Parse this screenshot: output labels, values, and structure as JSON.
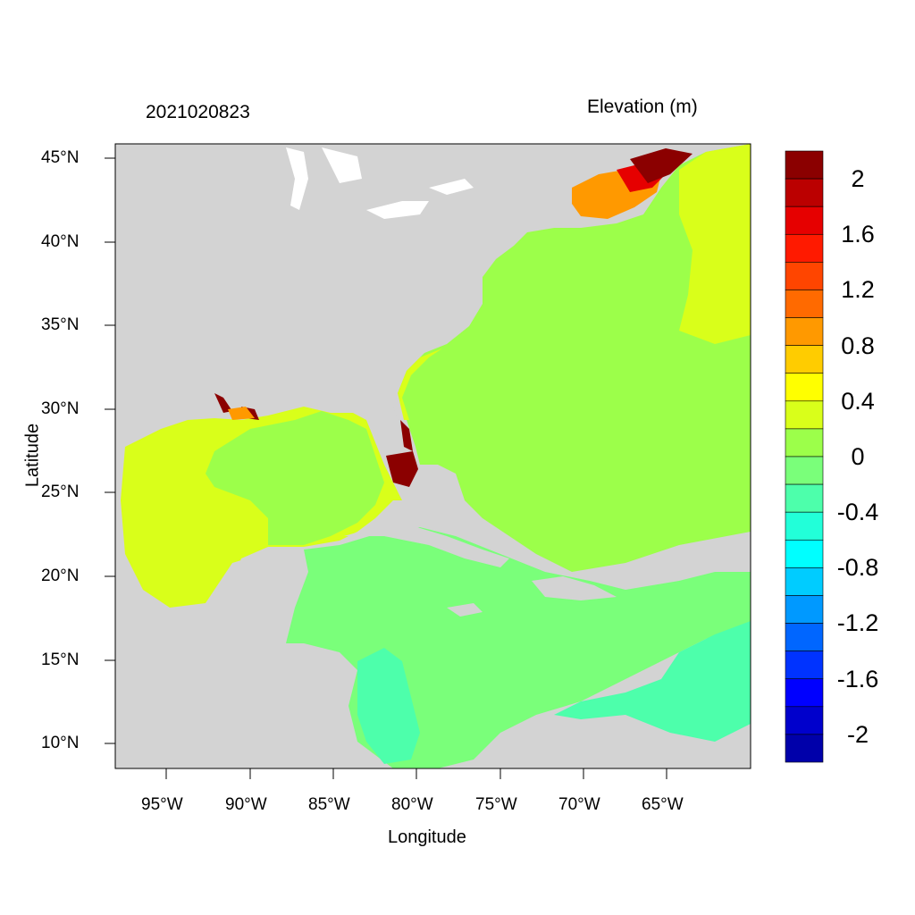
{
  "header": {
    "date_label": "2021020823",
    "variable_label": "Elevation (m)"
  },
  "axes": {
    "xlabel": "Longitude",
    "ylabel": "Latitude",
    "x_ticks": [
      "95°W",
      "90°W",
      "85°W",
      "80°W",
      "75°W",
      "70°W",
      "65°W"
    ],
    "y_ticks": [
      "45°N",
      "40°N",
      "35°N",
      "30°N",
      "25°N",
      "20°N",
      "15°N",
      "10°N"
    ]
  },
  "colorbar": {
    "labels": [
      "2",
      "1.6",
      "1.2",
      "0.8",
      "0.4",
      "0",
      "-0.4",
      "-0.8",
      "-1.2",
      "-1.6",
      "-2"
    ],
    "colors": [
      "#8b0000",
      "#bb0000",
      "#e60000",
      "#ff1a00",
      "#ff4500",
      "#ff6a00",
      "#ff9900",
      "#ffcc00",
      "#ffff00",
      "#d9ff1a",
      "#9cff4a",
      "#7aff7a",
      "#4dffab",
      "#22ffd9",
      "#00ffff",
      "#00ccff",
      "#0099ff",
      "#0066ff",
      "#0033ff",
      "#0000ff",
      "#0000cc",
      "#0000aa"
    ]
  },
  "colors": {
    "land": "#d3d3d3",
    "ocean_atlantic": "#9cff4a",
    "gulf": "#d9ff1a",
    "caribbean": "#7aff7a",
    "coastal_neg": "#4dffab",
    "surge_high": "#8b0000"
  }
}
